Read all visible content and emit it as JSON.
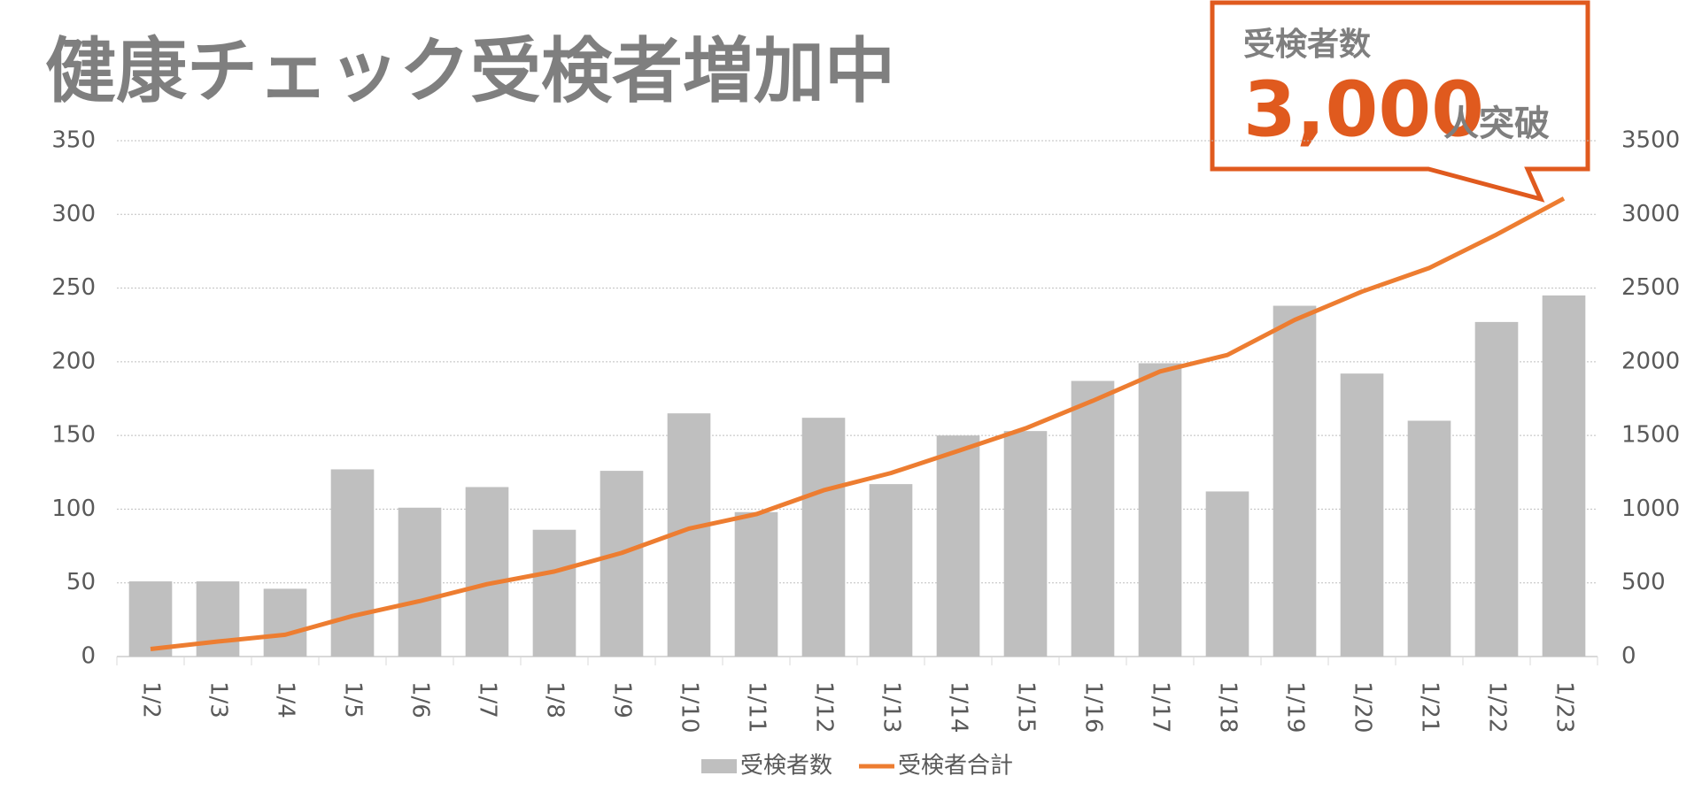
{
  "chart_data": {
    "type": "bar",
    "title": "健康チェック受検者増加中",
    "annotation": {
      "heading": "受検者数",
      "number": "3,000",
      "suffix": "人突破"
    },
    "categories": [
      "1/2",
      "1/3",
      "1/4",
      "1/5",
      "1/6",
      "1/7",
      "1/8",
      "1/9",
      "1/10",
      "1/11",
      "1/12",
      "1/13",
      "1/14",
      "1/15",
      "1/16",
      "1/17",
      "1/18",
      "1/19",
      "1/20",
      "1/21",
      "1/22",
      "1/23"
    ],
    "series": [
      {
        "name": "受検者数",
        "type": "bar",
        "color": "#bfbfbf",
        "axis": "y",
        "values": [
          51,
          51,
          46,
          127,
          101,
          115,
          86,
          126,
          165,
          98,
          162,
          117,
          150,
          153,
          187,
          199,
          112,
          238,
          192,
          160,
          227,
          245
        ]
      },
      {
        "name": "受検者合計",
        "type": "line",
        "color": "#ed7d31",
        "axis": "y2",
        "values": [
          51,
          102,
          148,
          275,
          376,
          491,
          577,
          703,
          868,
          966,
          1128,
          1245,
          1395,
          1548,
          1735,
          1934,
          2046,
          2284,
          2476,
          2636,
          2863,
          3108
        ]
      }
    ],
    "ylim": [
      0,
      350
    ],
    "yticks": [
      0,
      50,
      100,
      150,
      200,
      250,
      300,
      350
    ],
    "y2lim": [
      0,
      3500
    ],
    "y2ticks": [
      0,
      500,
      1000,
      1500,
      2000,
      2500,
      3000,
      3500
    ],
    "grid": true,
    "legend": "bottom"
  }
}
